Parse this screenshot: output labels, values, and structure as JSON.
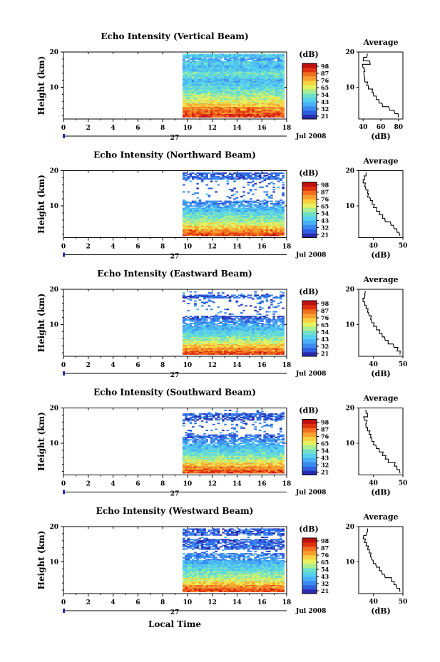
{
  "colors": {
    "scale": [
      "#2b2bb0",
      "#2f5fe0",
      "#3a8af0",
      "#4ab0f5",
      "#55d0f0",
      "#6fe0c8",
      "#a8ee90",
      "#e6f060",
      "#f8d040",
      "#f8a030",
      "#f07020",
      "#e03010",
      "#c01010"
    ]
  },
  "x_axis_label": "Local Time",
  "date_row": {
    "day": "27",
    "month_year": "Jul 2008"
  },
  "colorbar_unit": "(dB)",
  "colorbar_ticks": [
    "98",
    "87",
    "76",
    "65",
    "54",
    "43",
    "32",
    "21"
  ],
  "chart_data": [
    {
      "type": "heatmap",
      "title": "Echo Intensity (Vertical Beam)",
      "ylabel": "Height (km)",
      "xlabel": "Local Time",
      "xlim": [
        0,
        18
      ],
      "ylim": [
        1,
        20
      ],
      "x_ticks": [
        0,
        2,
        4,
        6,
        8,
        10,
        12,
        14,
        16,
        18
      ],
      "y_ticks": [
        10,
        20
      ],
      "data_start_hour": 9.6,
      "data_end_hour": 17.8,
      "color_scale": [
        21,
        98
      ],
      "height_km": [
        2,
        3,
        4,
        5,
        6,
        7,
        8,
        9,
        10,
        11,
        12,
        13,
        14,
        15,
        16,
        17,
        18,
        19
      ],
      "echo_dB": [
        88,
        84,
        80,
        72,
        66,
        62,
        58,
        54,
        50,
        46,
        44,
        50,
        52,
        46,
        44,
        48,
        40,
        46
      ],
      "profile": {
        "title": "Average",
        "xlabel": "(dB)",
        "xlim": [
          35,
          85
        ],
        "x_ticks": [
          40,
          60,
          80
        ],
        "ylim": [
          1,
          20
        ],
        "y_ticks": [
          10,
          20
        ],
        "height_km": [
          2,
          3,
          4,
          5,
          6,
          7,
          8,
          9,
          10,
          11,
          12,
          13,
          14,
          15,
          16,
          17,
          18,
          19
        ],
        "avg_dB": [
          80,
          76,
          70,
          62,
          58,
          55,
          52,
          50,
          46,
          44,
          42,
          42,
          41,
          42,
          40,
          48,
          40,
          44
        ]
      }
    },
    {
      "type": "heatmap",
      "title": "Echo Intensity (Northward Beam)",
      "ylabel": "Height (km)",
      "xlabel": "Local Time",
      "xlim": [
        0,
        18
      ],
      "ylim": [
        1,
        20
      ],
      "x_ticks": [
        0,
        2,
        4,
        6,
        8,
        10,
        12,
        14,
        16,
        18
      ],
      "y_ticks": [
        10,
        20
      ],
      "data_start_hour": 9.6,
      "data_end_hour": 17.8,
      "color_scale": [
        21,
        98
      ],
      "height_km": [
        2,
        3,
        4,
        5,
        6,
        7,
        8,
        9,
        10,
        11,
        12,
        13,
        14,
        15,
        16,
        17,
        18,
        19
      ],
      "echo_dB": [
        86,
        80,
        72,
        64,
        58,
        54,
        50,
        44,
        40,
        36,
        0,
        0,
        0,
        0,
        0,
        0,
        32,
        30
      ],
      "profile": {
        "title": "Average",
        "xlabel": "(dB)",
        "xlim": [
          35,
          50
        ],
        "x_ticks": [
          40,
          50
        ],
        "ylim": [
          1,
          20
        ],
        "y_ticks": [
          10,
          20
        ],
        "height_km": [
          2,
          3,
          4,
          5,
          6,
          7,
          8,
          9,
          10,
          11,
          12,
          13,
          14,
          15,
          16,
          17,
          18,
          19
        ],
        "avg_dB": [
          49,
          48,
          47,
          46,
          44,
          43,
          42,
          41,
          40,
          39.5,
          39,
          38,
          38,
          37.5,
          37,
          36.5,
          37,
          37.5
        ]
      }
    },
    {
      "type": "heatmap",
      "title": "Echo Intensity (Eastward Beam)",
      "ylabel": "Height (km)",
      "xlabel": "Local Time",
      "xlim": [
        0,
        18
      ],
      "ylim": [
        1,
        20
      ],
      "x_ticks": [
        0,
        2,
        4,
        6,
        8,
        10,
        12,
        14,
        16,
        18
      ],
      "y_ticks": [
        10,
        20
      ],
      "data_start_hour": 9.6,
      "data_end_hour": 17.8,
      "color_scale": [
        21,
        98
      ],
      "height_km": [
        2,
        3,
        4,
        5,
        6,
        7,
        8,
        9,
        10,
        11,
        12,
        13,
        14,
        15,
        16,
        17,
        18,
        19
      ],
      "echo_dB": [
        86,
        80,
        72,
        64,
        58,
        52,
        48,
        44,
        40,
        36,
        30,
        0,
        0,
        0,
        0,
        0,
        30,
        0
      ],
      "profile": {
        "title": "Average",
        "xlabel": "(dB)",
        "xlim": [
          35,
          50
        ],
        "x_ticks": [
          40,
          50
        ],
        "ylim": [
          1,
          20
        ],
        "y_ticks": [
          10,
          20
        ],
        "height_km": [
          2,
          3,
          4,
          5,
          6,
          7,
          8,
          9,
          10,
          11,
          12,
          13,
          14,
          15,
          16,
          17,
          18,
          19
        ],
        "avg_dB": [
          49,
          48,
          47,
          45,
          44,
          43,
          42,
          41,
          40,
          39.5,
          39,
          38.5,
          38,
          37.5,
          37,
          36.5,
          37,
          37
        ]
      }
    },
    {
      "type": "heatmap",
      "title": "Echo Intensity (Southward Beam)",
      "ylabel": "Height (km)",
      "xlabel": "Local Time",
      "xlim": [
        0,
        18
      ],
      "ylim": [
        1,
        20
      ],
      "x_ticks": [
        0,
        2,
        4,
        6,
        8,
        10,
        12,
        14,
        16,
        18
      ],
      "y_ticks": [
        10,
        20
      ],
      "data_start_hour": 9.6,
      "data_end_hour": 17.8,
      "color_scale": [
        21,
        98
      ],
      "height_km": [
        2,
        3,
        4,
        5,
        6,
        7,
        8,
        9,
        10,
        11,
        12,
        13,
        14,
        15,
        16,
        17,
        18,
        19
      ],
      "echo_dB": [
        86,
        80,
        72,
        64,
        58,
        52,
        48,
        44,
        40,
        36,
        32,
        0,
        0,
        0,
        0,
        30,
        30,
        0
      ],
      "profile": {
        "title": "Average",
        "xlabel": "(dB)",
        "xlim": [
          35,
          50
        ],
        "x_ticks": [
          40,
          50
        ],
        "ylim": [
          1,
          20
        ],
        "y_ticks": [
          10,
          20
        ],
        "height_km": [
          2,
          3,
          4,
          5,
          6,
          7,
          8,
          9,
          10,
          11,
          12,
          13,
          14,
          15,
          16,
          17,
          18,
          19
        ],
        "avg_dB": [
          49,
          48,
          47,
          45,
          44,
          43,
          42,
          41,
          40,
          39.5,
          39,
          38.5,
          38,
          37.5,
          37.5,
          37,
          38,
          37.5
        ]
      }
    },
    {
      "type": "heatmap",
      "title": "Echo Intensity (Westward Beam)",
      "ylabel": "Height (km)",
      "xlabel": "Local Time",
      "xlim": [
        0,
        18
      ],
      "ylim": [
        1,
        20
      ],
      "x_ticks": [
        0,
        2,
        4,
        6,
        8,
        10,
        12,
        14,
        16,
        18
      ],
      "y_ticks": [
        10,
        20
      ],
      "data_start_hour": 9.6,
      "data_end_hour": 17.8,
      "color_scale": [
        21,
        98
      ],
      "height_km": [
        2,
        3,
        4,
        5,
        6,
        7,
        8,
        9,
        10,
        11,
        12,
        13,
        14,
        15,
        16,
        17,
        18,
        19
      ],
      "echo_dB": [
        86,
        80,
        72,
        64,
        58,
        54,
        50,
        46,
        42,
        38,
        34,
        0,
        30,
        32,
        30,
        0,
        30,
        30
      ],
      "profile": {
        "title": "Average",
        "xlabel": "(dB)",
        "xlim": [
          35,
          50
        ],
        "x_ticks": [
          40,
          50
        ],
        "ylim": [
          1,
          20
        ],
        "y_ticks": [
          10,
          20
        ],
        "height_km": [
          2,
          3,
          4,
          5,
          6,
          7,
          8,
          9,
          10,
          11,
          12,
          13,
          14,
          15,
          16,
          17,
          18,
          19
        ],
        "avg_dB": [
          49,
          48,
          47,
          46,
          44,
          43,
          42,
          41,
          40,
          39.5,
          39,
          38.5,
          38,
          37.5,
          37,
          36.5,
          37.5,
          38
        ]
      }
    }
  ]
}
